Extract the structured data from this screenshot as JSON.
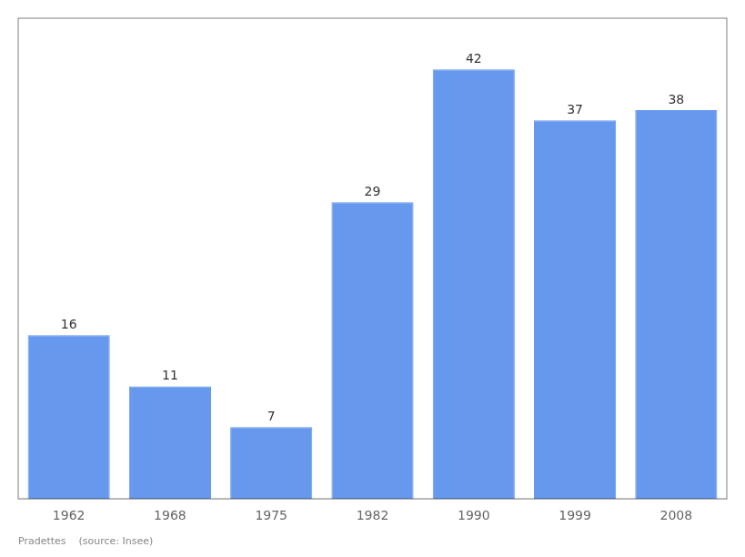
{
  "chart_data": {
    "type": "bar",
    "categories": [
      "1962",
      "1968",
      "1975",
      "1982",
      "1990",
      "1999",
      "2008"
    ],
    "values": [
      16,
      11,
      7,
      29,
      42,
      37,
      38
    ],
    "color": "#6699ee",
    "ylim": [
      0,
      47
    ],
    "grid": false,
    "tick_labels": "x",
    "data_labels": true,
    "annotations": [
      "Pradettes    (source: Insee)"
    ]
  }
}
